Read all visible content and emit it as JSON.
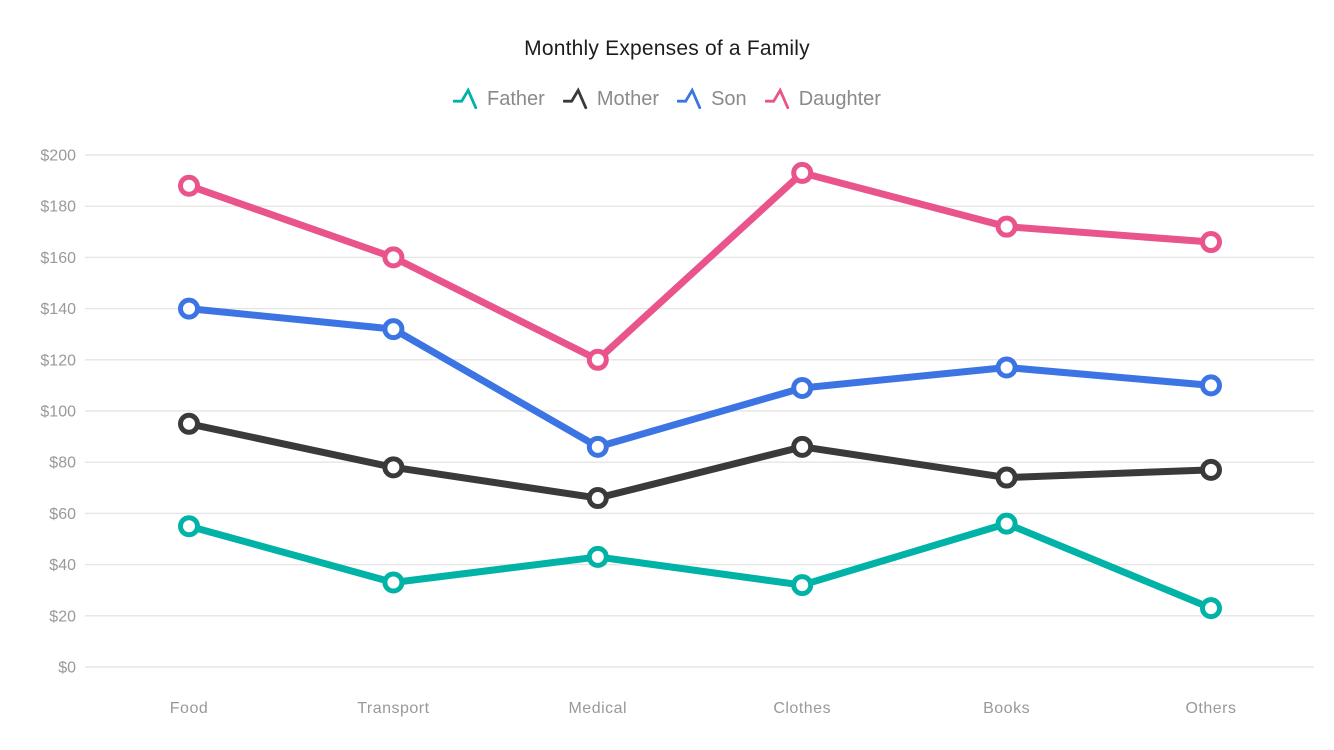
{
  "chart_data": {
    "type": "line",
    "title": "Monthly Expenses of a Family",
    "categories": [
      "Food",
      "Transport",
      "Medical",
      "Clothes",
      "Books",
      "Others"
    ],
    "series": [
      {
        "name": "Father",
        "color": "#00b3a6",
        "values": [
          55,
          33,
          43,
          32,
          56,
          23
        ]
      },
      {
        "name": "Mother",
        "color": "#3a3a3a",
        "values": [
          95,
          78,
          66,
          86,
          74,
          77
        ]
      },
      {
        "name": "Son",
        "color": "#3d74e4",
        "values": [
          140,
          132,
          86,
          109,
          117,
          110
        ]
      },
      {
        "name": "Daughter",
        "color": "#e8548b",
        "values": [
          188,
          160,
          120,
          193,
          172,
          166
        ]
      }
    ],
    "ylim": [
      0,
      200
    ],
    "y_step": 20,
    "y_ticks": [
      "$0",
      "$20",
      "$40",
      "$60",
      "$80",
      "$100",
      "$120",
      "$140",
      "$160",
      "$180",
      "$200"
    ],
    "xlabel": "",
    "ylabel": "",
    "grid": true,
    "legend_position": "top",
    "colors": {
      "gridline": "#e5e5e5",
      "axis_tick_label": "#999999",
      "legend_text": "#8a8a8a",
      "title_text": "#1c1c1c",
      "marker_fill": "#ffffff"
    }
  }
}
